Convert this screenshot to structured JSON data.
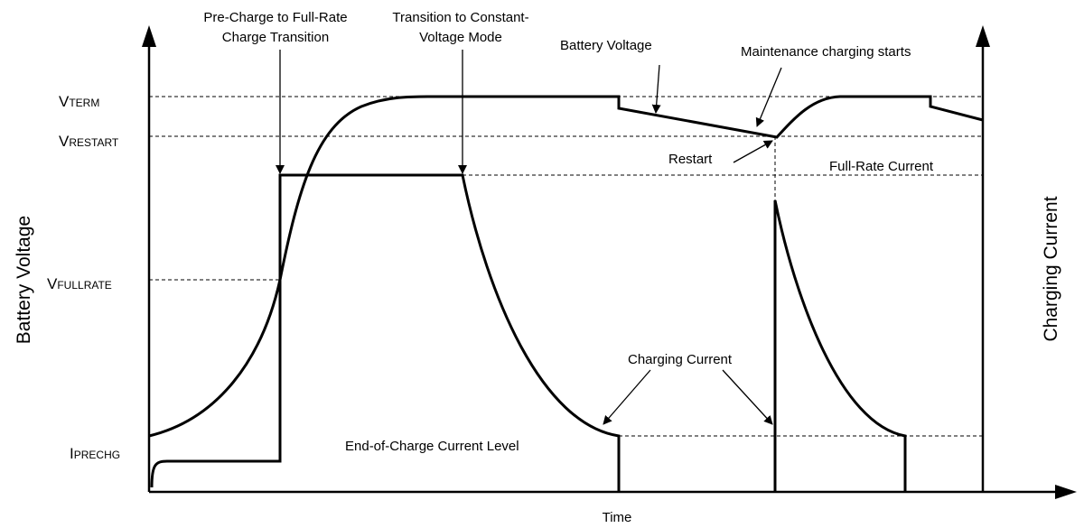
{
  "title_annotations": {
    "precharge": [
      "Pre-Charge to Full-Rate",
      "Charge Transition"
    ],
    "cv_mode": [
      "Transition to Constant-",
      "Voltage Mode"
    ],
    "battery_voltage": "Battery Voltage",
    "maintenance": "Maintenance charging starts",
    "restart": "Restart",
    "full_rate_current": "Full-Rate Current",
    "charging_current": "Charging Current",
    "end_of_charge": "End-of-Charge Current Level"
  },
  "levels": [
    {
      "main": "V",
      "sub": "TERM"
    },
    {
      "main": "V",
      "sub": "RESTART"
    },
    {
      "main": "V",
      "sub": "FULLRATE"
    },
    {
      "main": "I",
      "sub": "PRECHG"
    }
  ],
  "axes": {
    "left": "Battery Voltage",
    "right": "Charging Current",
    "bottom": "Time"
  }
}
